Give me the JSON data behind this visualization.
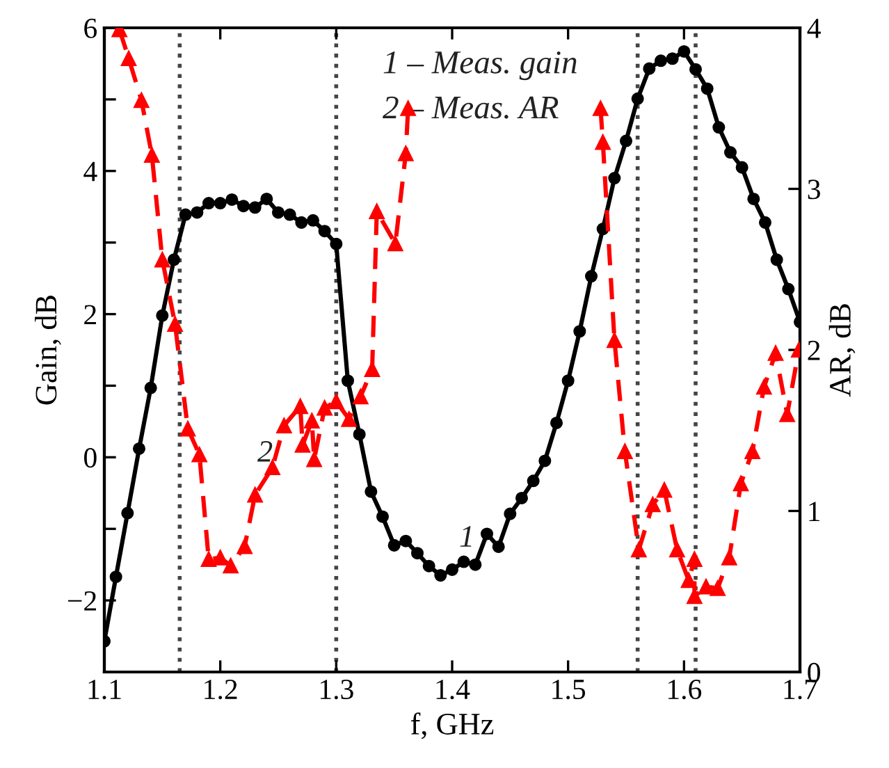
{
  "chart_data": {
    "type": "line",
    "xlabel": "f, GHz",
    "ylabel": "Gain, dB",
    "y2label": "AR, dB",
    "xlim": [
      1.1,
      1.7
    ],
    "xticks": [
      1.1,
      1.2,
      1.3,
      1.4,
      1.5,
      1.6,
      1.7
    ],
    "ylim": [
      -3,
      6
    ],
    "yticks": [
      {
        "value": -2,
        "label": "−2"
      },
      {
        "value": -1,
        "label": null
      },
      0,
      {
        "value": 1,
        "label": null
      },
      2,
      {
        "value": 3,
        "label": null
      },
      4,
      {
        "value": 5,
        "label": null
      },
      6
    ],
    "y2lim": [
      0,
      4
    ],
    "y2ticks": [
      0,
      1,
      2,
      3,
      4
    ],
    "grid": false,
    "series": [
      {
        "color": "#000000",
        "marker": "circle",
        "line_style": "solid",
        "x": [
          1.1,
          1.11,
          1.12,
          1.13,
          1.14,
          1.15,
          1.16,
          1.17,
          1.18,
          1.19,
          1.2,
          1.21,
          1.22,
          1.23,
          1.24,
          1.25,
          1.26,
          1.27,
          1.28,
          1.29,
          1.3,
          1.31,
          1.32,
          1.33,
          1.34,
          1.35,
          1.36,
          1.37,
          1.38,
          1.39,
          1.4,
          1.41,
          1.42,
          1.43,
          1.44,
          1.45,
          1.46,
          1.47,
          1.48,
          1.49,
          1.5,
          1.51,
          1.52,
          1.53,
          1.54,
          1.55,
          1.56,
          1.57,
          1.58,
          1.59,
          1.6,
          1.61,
          1.62,
          1.63,
          1.64,
          1.65,
          1.66,
          1.67,
          1.68,
          1.69,
          1.7
        ],
        "values": [
          -2.57,
          -1.67,
          -0.78,
          0.12,
          0.97,
          1.98,
          2.76,
          3.39,
          3.42,
          3.55,
          3.55,
          3.6,
          3.51,
          3.49,
          3.61,
          3.42,
          3.39,
          3.28,
          3.31,
          3.16,
          2.98,
          1.07,
          0.32,
          -0.48,
          -0.83,
          -1.23,
          -1.17,
          -1.34,
          -1.52,
          -1.65,
          -1.57,
          -1.46,
          -1.5,
          -1.07,
          -1.25,
          -0.79,
          -0.57,
          -0.33,
          -0.05,
          0.48,
          1.07,
          1.76,
          2.53,
          3.19,
          3.9,
          4.42,
          5.01,
          5.43,
          5.54,
          5.57,
          5.67,
          5.42,
          5.15,
          4.61,
          4.26,
          4.05,
          3.61,
          3.28,
          2.76,
          2.35,
          1.89
        ]
      },
      {
        "color": "#ff0000",
        "marker": "triangle",
        "line_style": "dashed",
        "axis": "y2",
        "x": [
          1.113,
          1.121,
          1.132,
          1.141,
          1.15,
          1.161,
          1.172,
          1.182,
          1.19,
          1.2,
          1.209,
          1.221,
          1.23,
          1.245,
          1.255,
          1.269,
          1.271,
          1.279,
          1.281,
          1.29,
          1.3,
          1.311,
          1.321,
          1.331,
          1.335,
          1.351,
          1.36,
          1.362,
          1.45,
          1.528,
          1.53,
          1.54,
          1.549,
          1.561,
          1.573,
          1.583,
          1.594,
          1.604,
          1.609,
          1.609,
          1.619,
          1.629,
          1.639,
          1.649,
          1.659,
          1.669,
          1.679,
          1.689,
          1.699
        ],
        "values": [
          3.99,
          3.81,
          3.55,
          3.21,
          2.56,
          2.16,
          1.51,
          1.35,
          0.7,
          0.71,
          0.66,
          0.78,
          1.1,
          1.27,
          1.53,
          1.65,
          1.41,
          1.56,
          1.32,
          1.64,
          1.68,
          1.57,
          1.71,
          1.88,
          2.86,
          2.66,
          3.22,
          3.5,
          null,
          3.5,
          3.29,
          2.06,
          1.37,
          0.76,
          1.04,
          1.13,
          0.76,
          0.57,
          0.7,
          0.47,
          0.53,
          0.52,
          0.71,
          1.17,
          1.37,
          1.77,
          1.98,
          1.6,
          2.0
        ]
      }
    ],
    "ref_lines": [
      {
        "axis": "x",
        "value": 1.165,
        "color": "#444444",
        "line_style": "dotted"
      },
      {
        "axis": "x",
        "value": 1.3,
        "color": "#444444",
        "line_style": "dotted"
      },
      {
        "axis": "x",
        "value": 1.56,
        "color": "#444444",
        "line_style": "dotted"
      },
      {
        "axis": "x",
        "value": 1.61,
        "color": "#444444",
        "line_style": "dotted"
      }
    ],
    "annotations": [
      "1 – Meas. gain",
      "2 – Meas. AR",
      "1",
      "2"
    ]
  }
}
